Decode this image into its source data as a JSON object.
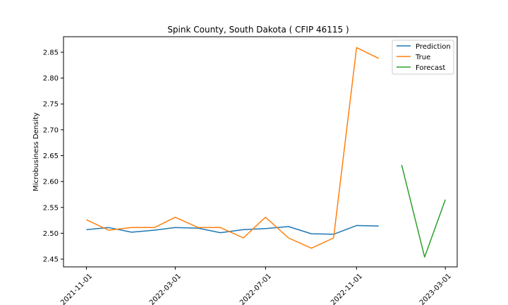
{
  "chart_data": {
    "type": "line",
    "title": "Spink County, South Dakota ( CFIP 46115 )",
    "xlabel": "",
    "ylabel": "Microbusiness Density",
    "xlim": [
      "2021-10-01",
      "2023-03-17"
    ],
    "ylim": [
      2.435,
      2.88
    ],
    "x_ticks": [
      "2021-11-01",
      "2022-03-01",
      "2022-07-01",
      "2022-11-01",
      "2023-03-01"
    ],
    "y_ticks": [
      "2.45",
      "2.50",
      "2.55",
      "2.60",
      "2.65",
      "2.70",
      "2.75",
      "2.80",
      "2.85"
    ],
    "grid": false,
    "legend_position": "top-right",
    "series": [
      {
        "name": "Prediction",
        "color": "#1f77b4",
        "x": [
          "2021-11-01",
          "2021-12-01",
          "2022-01-01",
          "2022-02-01",
          "2022-03-01",
          "2022-04-01",
          "2022-05-01",
          "2022-06-01",
          "2022-07-01",
          "2022-08-01",
          "2022-09-01",
          "2022-10-01",
          "2022-11-01",
          "2022-12-01"
        ],
        "y": [
          2.507,
          2.511,
          2.502,
          2.506,
          2.511,
          2.51,
          2.501,
          2.507,
          2.509,
          2.513,
          2.499,
          2.498,
          2.515,
          2.514
        ]
      },
      {
        "name": "True",
        "color": "#ff7f0e",
        "x": [
          "2021-11-01",
          "2021-12-01",
          "2022-01-01",
          "2022-02-01",
          "2022-03-01",
          "2022-04-01",
          "2022-05-01",
          "2022-06-01",
          "2022-07-01",
          "2022-08-01",
          "2022-09-01",
          "2022-10-01",
          "2022-11-01",
          "2022-12-01"
        ],
        "y": [
          2.526,
          2.506,
          2.511,
          2.511,
          2.531,
          2.511,
          2.511,
          2.491,
          2.531,
          2.491,
          2.471,
          2.491,
          2.859,
          2.838
        ]
      },
      {
        "name": "Forecast",
        "color": "#2ca02c",
        "x": [
          "2023-01-01",
          "2023-02-01",
          "2023-03-01"
        ],
        "y": [
          2.632,
          2.454,
          2.565
        ]
      }
    ]
  }
}
